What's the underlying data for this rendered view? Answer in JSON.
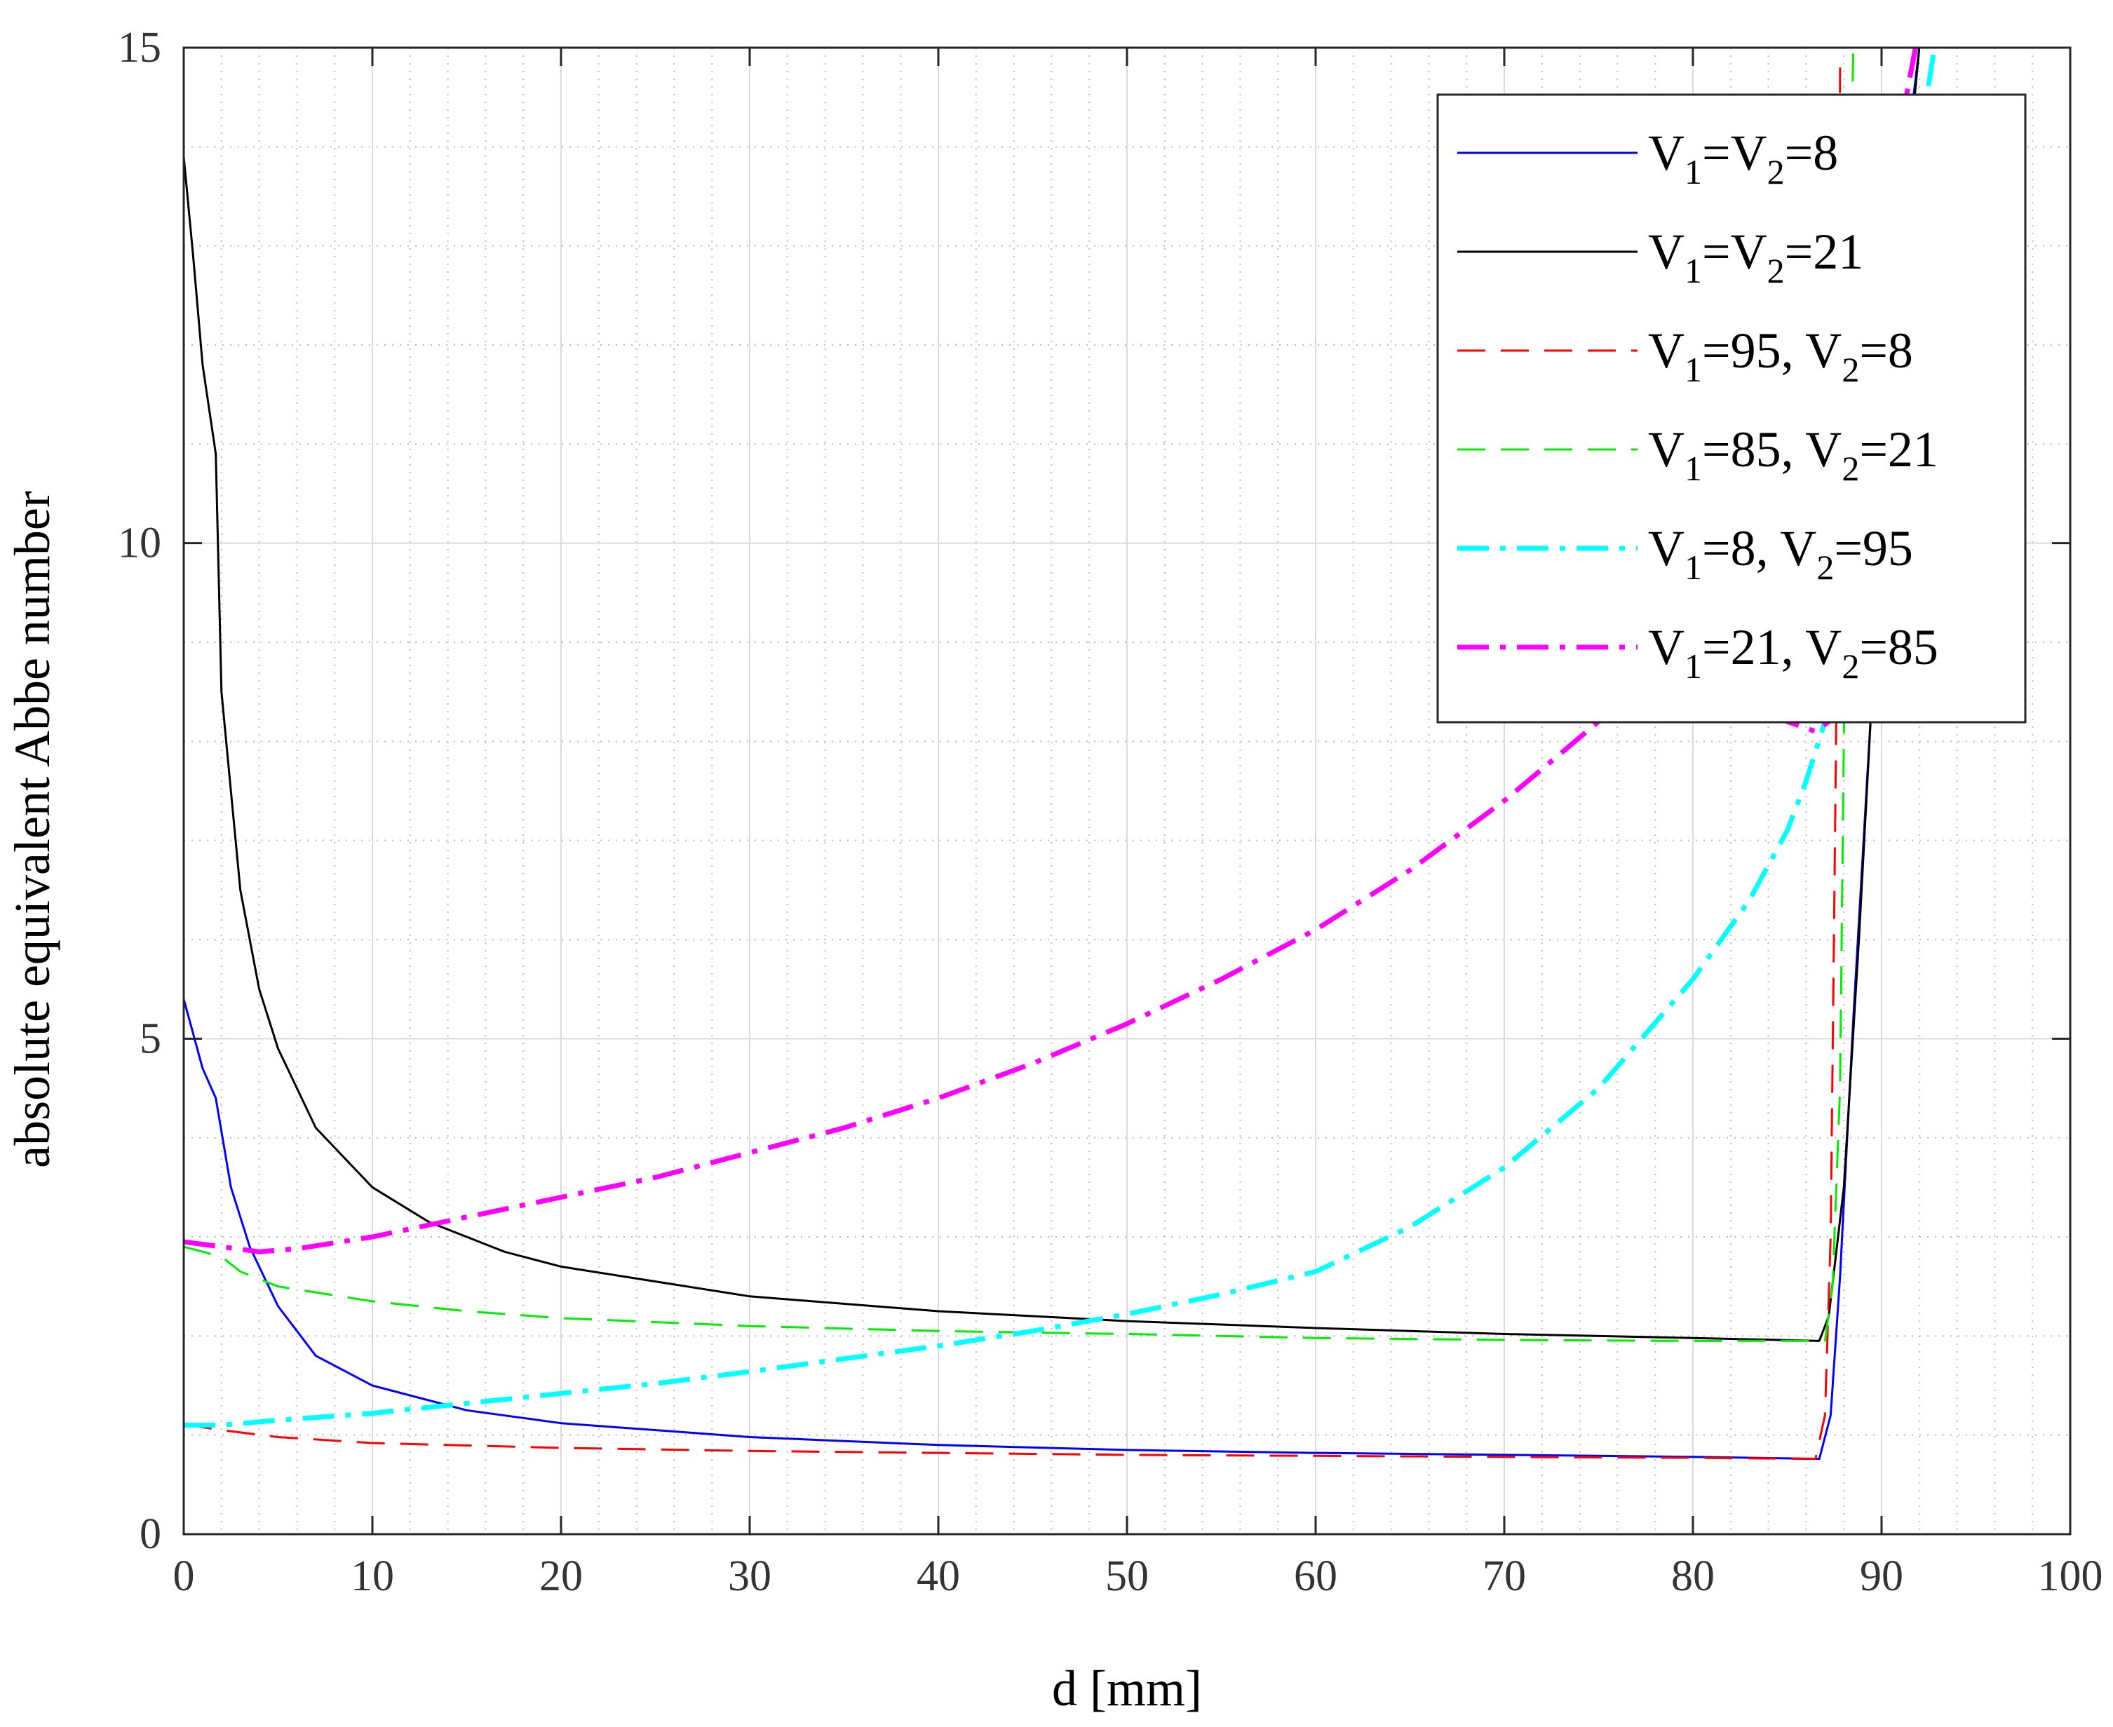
{
  "chart_data": {
    "type": "line",
    "xlabel": "d [mm]",
    "ylabel": "absolute equivalent Abbe number",
    "xlim": [
      0,
      100
    ],
    "ylim": [
      0,
      15
    ],
    "xticks": [
      "0",
      "10",
      "20",
      "30",
      "40",
      "50",
      "60",
      "70",
      "80",
      "90",
      "100"
    ],
    "yticks": [
      "0",
      "5",
      "10",
      "15"
    ],
    "grid": "major and minor",
    "legend_position": "top-right",
    "series": [
      {
        "name": "V1=V2=8",
        "legend": [
          {
            "t": "V"
          },
          {
            "t": "1",
            "sub": true
          },
          {
            "t": "=V"
          },
          {
            "t": "2",
            "sub": true
          },
          {
            "t": "=8"
          }
        ],
        "color": "#0000ff",
        "dash": "solid",
        "width": 3,
        "x": [
          0,
          1,
          1.7,
          2.5,
          3.5,
          5,
          7,
          10,
          15,
          20,
          30,
          40,
          50,
          60,
          70,
          80,
          86.7,
          87.3,
          87.8,
          88.5,
          89.5,
          90.5,
          91.5,
          92
        ],
        "y": [
          5.4,
          4.7,
          4.4,
          3.5,
          2.9,
          2.3,
          1.8,
          1.5,
          1.25,
          1.12,
          0.98,
          0.9,
          0.85,
          0.82,
          0.8,
          0.78,
          0.76,
          1.2,
          2.6,
          5.2,
          8.5,
          11.5,
          14.2,
          15
        ]
      },
      {
        "name": "V1=V2=21",
        "legend": [
          {
            "t": "V"
          },
          {
            "t": "1",
            "sub": true
          },
          {
            "t": "=V"
          },
          {
            "t": "2",
            "sub": true
          },
          {
            "t": "=21"
          }
        ],
        "color": "#000000",
        "dash": "solid",
        "width": 3,
        "x": [
          0,
          0.5,
          1,
          1.7,
          2,
          3,
          4,
          5,
          7,
          10,
          13,
          17,
          20,
          30,
          40,
          50,
          60,
          70,
          80,
          86.7,
          87.2,
          88,
          88.8,
          89.5,
          90.5,
          91.5,
          92
        ],
        "y": [
          13.9,
          12.9,
          11.8,
          10.9,
          8.5,
          6.5,
          5.5,
          4.9,
          4.1,
          3.5,
          3.15,
          2.85,
          2.7,
          2.4,
          2.25,
          2.15,
          2.08,
          2.02,
          1.98,
          1.95,
          2.2,
          3.5,
          6.0,
          8.5,
          11.5,
          14,
          15
        ]
      },
      {
        "name": "V1=95, V2=8",
        "legend": [
          {
            "t": "V"
          },
          {
            "t": "1",
            "sub": true
          },
          {
            "t": "=95, V"
          },
          {
            "t": "2",
            "sub": true
          },
          {
            "t": "=8"
          }
        ],
        "color": "#ff0000",
        "dash": "40 22",
        "width": 3,
        "x": [
          0,
          1,
          2,
          5,
          10,
          20,
          30,
          40,
          50,
          60,
          70,
          80,
          86.5,
          87,
          87.3,
          87.5,
          87.7,
          87.8
        ],
        "y": [
          1.1,
          1.08,
          1.05,
          0.98,
          0.92,
          0.87,
          0.84,
          0.82,
          0.8,
          0.79,
          0.78,
          0.77,
          0.76,
          1.2,
          3,
          6.5,
          10,
          14.8
        ]
      },
      {
        "name": "V1=85, V2=21",
        "legend": [
          {
            "t": "V"
          },
          {
            "t": "1",
            "sub": true
          },
          {
            "t": "=85, V"
          },
          {
            "t": "2",
            "sub": true
          },
          {
            "t": "=21"
          }
        ],
        "color": "#00ee00",
        "dash": "40 22",
        "width": 3,
        "x": [
          0,
          1,
          2,
          3,
          5,
          10,
          15,
          20,
          30,
          40,
          50,
          60,
          70,
          80,
          87,
          87.4,
          87.8,
          88,
          88.2,
          88.5
        ],
        "y": [
          2.9,
          2.85,
          2.8,
          2.65,
          2.5,
          2.35,
          2.25,
          2.18,
          2.1,
          2.05,
          2.02,
          1.98,
          1.96,
          1.95,
          1.95,
          2.5,
          4.5,
          8,
          12,
          15
        ]
      },
      {
        "name": "V1=8, V2=95",
        "legend": [
          {
            "t": "V"
          },
          {
            "t": "1",
            "sub": true
          },
          {
            "t": "=8, V"
          },
          {
            "t": "2",
            "sub": true
          },
          {
            "t": "=95"
          }
        ],
        "color": "#00ffff",
        "dash": "45 16 8 16",
        "width": 7,
        "x": [
          0,
          2,
          5,
          10,
          15,
          20,
          25,
          30,
          35,
          40,
          45,
          50,
          55,
          60,
          65,
          70,
          75,
          80,
          83,
          85,
          86,
          87,
          88,
          89,
          90,
          91,
          92,
          92.8
        ],
        "y": [
          1.1,
          1.1,
          1.15,
          1.22,
          1.32,
          1.42,
          1.52,
          1.64,
          1.77,
          1.9,
          2.05,
          2.22,
          2.42,
          2.65,
          3.1,
          3.7,
          4.5,
          5.6,
          6.4,
          7.1,
          7.6,
          8.2,
          9.0,
          10.2,
          11.5,
          12.8,
          14.0,
          15
        ]
      },
      {
        "name": "V1=21, V2=85",
        "legend": [
          {
            "t": "V"
          },
          {
            "t": "1",
            "sub": true
          },
          {
            "t": "=21, V"
          },
          {
            "t": "2",
            "sub": true
          },
          {
            "t": "=85"
          }
        ],
        "color": "#ff00ff",
        "dash": "45 16 8 16",
        "width": 7,
        "x": [
          0,
          2,
          4,
          6,
          10,
          15,
          20,
          25,
          30,
          35,
          40,
          45,
          50,
          55,
          60,
          65,
          70,
          75,
          78,
          80,
          82,
          85,
          86.5,
          87.2,
          88,
          89,
          90,
          91,
          91.8
        ],
        "y": [
          2.95,
          2.9,
          2.85,
          2.88,
          3.0,
          3.2,
          3.4,
          3.6,
          3.85,
          4.1,
          4.4,
          4.75,
          5.15,
          5.6,
          6.1,
          6.7,
          7.4,
          8.2,
          8.7,
          9.1,
          8.4,
          8.2,
          8.1,
          8.2,
          9.5,
          11,
          12.8,
          14.2,
          15
        ]
      }
    ]
  }
}
